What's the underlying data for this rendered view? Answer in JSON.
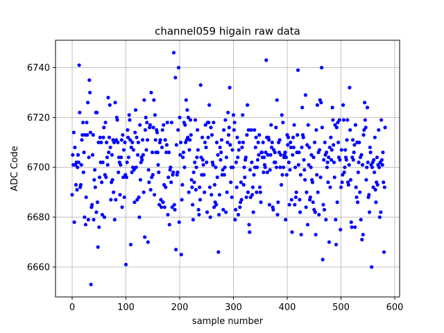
{
  "chart_data": {
    "type": "scatter",
    "title": "channel059 higain raw data",
    "xlabel": "sample number",
    "ylabel": "ADC Code",
    "xlim": [
      -31,
      609
    ],
    "ylim": [
      6648,
      6751
    ],
    "xticks": [
      0,
      100,
      200,
      300,
      400,
      500,
      600
    ],
    "yticks": [
      6660,
      6680,
      6700,
      6720,
      6740
    ],
    "grid": true,
    "marker_color": "#0000ff",
    "series": [
      {
        "values": [
          6689,
          6705,
          6701,
          6714,
          6678,
          6708,
          6701,
          6693,
          6702,
          6691,
          6700,
          6705,
          6702,
          6741,
          6722,
          6692,
          6693,
          6701,
          6711,
          6713,
          6718,
          6698,
          6706,
          6680,
          6713,
          6677,
          6688,
          6718,
          6713,
          6726,
          6679,
          6704,
          6735,
          6730,
          6714,
          6653,
          6684,
          6685,
          6705,
          6713,
          6679,
          6695,
          6699,
          6692,
          6722,
          6682,
          6722,
          6686,
          6668,
          6710,
          6676,
          6696,
          6712,
          6702,
          6710,
          6694,
          6681,
          6702,
          6712,
          6716,
          6680,
          6697,
          6718,
          6696,
          6710,
          6704,
          6701,
          6728,
          6706,
          6712,
          6725,
          6708,
          6687,
          6694,
          6705,
          6695,
          6711,
          6690,
          6710,
          6679,
          6726,
          6687,
          6711,
          6720,
          6719,
          6710,
          6698,
          6704,
          6702,
          6689,
          6701,
          6704,
          6711,
          6684,
          6713,
          6696,
          6707,
          6688,
          6710,
          6697,
          6661,
          6696,
          6702,
          6715,
          6712,
          6704,
          6721,
          6719,
          6711,
          6669,
          6708,
          6698,
          6710,
          6700,
          6707,
          6699,
          6686,
          6714,
          6723,
          6700,
          6712,
          6687,
          6705,
          6710,
          6688,
          6680,
          6717,
          6695,
          6702,
          6704,
          6703,
          6711,
          6705,
          6690,
          6727,
          6672,
          6715,
          6720,
          6707,
          6718,
          6711,
          6670,
          6699,
          6694,
          6716,
          6717,
          6691,
          6730,
          6696,
          6706,
          6697,
          6716,
          6727,
          6689,
          6721,
          6711,
          6706,
          6715,
          6714,
          6706,
          6701,
          6698,
          6685,
          6710,
          6711,
          6687,
          6684,
          6708,
          6715,
          6686,
          6717,
          6693,
          6684,
          6711,
          6692,
          6706,
          6709,
          6718,
          6681,
          6696,
          6706,
          6677,
          6699,
          6700,
          6694,
          6718,
          6684,
          6697,
          6698,
          6746,
          6685,
          6683,
          6736,
          6667,
          6709,
          6697,
          6698,
          6715,
          6740,
          6678,
          6720,
          6705,
          6710,
          6665,
          6687,
          6693,
          6704,
          6706,
          6718,
          6700,
          6717,
          6710,
          6727,
          6711,
          6723,
          6712,
          6720,
          6690,
          6707,
          6711,
          6719,
          6713,
          6695,
          6692,
          6685,
          6679,
          6698,
          6694,
          6702,
          6719,
          6691,
          6700,
          6704,
          6715,
          6707,
          6683,
          6681,
          6692,
          6687,
          6733,
          6704,
          6697,
          6712,
          6703,
          6701,
          6697,
          6690,
          6710,
          6717,
          6708,
          6702,
          6682,
          6718,
          6712,
          6718,
          6725,
          6692,
          6680,
          6716,
          6689,
          6713,
          6702,
          6701,
          6718,
          6684,
          6693,
          6686,
          6700,
          6685,
          6710,
          6696,
          6705,
          6666,
          6681,
          6689,
          6708,
          6703,
          6706,
          6711,
          6697,
          6699,
          6683,
          6715,
          6697,
          6700,
          6719,
          6682,
          6704,
          6690,
          6710,
          6722,
          6713,
          6716,
          6732,
          6709,
          6694,
          6700,
          6688,
          6707,
          6700,
          6721,
          6715,
          6718,
          6679,
          6683,
          6702,
          6692,
          6712,
          6704,
          6681,
          6707,
          6710,
          6684,
          6686,
          6694,
          6687,
          6708,
          6721,
          6710,
          6693,
          6700,
          6696,
          6703,
          6704,
          6688,
          6713,
          6725,
          6690,
          6715,
          6677,
          6674,
          6699,
          6688,
          6715,
          6702,
          6689,
          6692,
          6682,
          6697,
          6715,
          6700,
          6708,
          6712,
          6690,
          6700,
          6703,
          6710,
          6705,
          6713,
          6692,
          6690,
          6686,
          6706,
          6706,
          6704,
          6710,
          6698,
          6704,
          6701,
          6700,
          6706,
          6743,
          6712,
          6698,
          6705,
          6712,
          6711,
          6685,
          6699,
          6705,
          6717,
          6708,
          6710,
          6684,
          6683,
          6707,
          6702,
          6706,
          6702,
          6716,
          6700,
          6727,
          6681,
          6686,
          6710,
          6706,
          6711,
          6700,
          6705,
          6693,
          6721,
          6697,
          6718,
          6700,
          6704,
          6705,
          6706,
          6679,
          6704,
          6697,
          6713,
          6709,
          6712,
          6702,
          6685,
          6699,
          6710,
          6708,
          6687,
          6674,
          6705,
          6712,
          6708,
          6717,
          6685,
          6700,
          6688,
          6690,
          6706,
          6713,
          6739,
          6701,
          6706,
          6687,
          6682,
          6697,
          6673,
          6708,
          6724,
          6713,
          6712,
          6703,
          6699,
          6695,
          6729,
          6684,
          6690,
          6709,
          6677,
          6717,
          6701,
          6708,
          6687,
          6688,
          6700,
          6705,
          6695,
          6694,
          6686,
          6704,
          6683,
          6710,
          6682,
          6673,
          6715,
          6697,
          6725,
          6690,
          6706,
          6681,
          6707,
          6727,
          6696,
          6726,
          6740,
          6716,
          6663,
          6685,
          6703,
          6683,
          6710,
          6705,
          6679,
          6706,
          6700,
          6702,
          6694,
          6704,
          6670,
          6708,
          6692,
          6712,
          6703,
          6707,
          6724,
          6719,
          6709,
          6702,
          6696,
          6717,
          6679,
          6669,
          6716,
          6686,
          6718,
          6710,
          6704,
          6719,
          6703,
          6675,
          6692,
          6707,
          6694,
          6697,
          6725,
          6719,
          6698,
          6700,
          6707,
          6704,
          6703,
          6711,
          6719,
          6694,
          6693,
          6701,
          6732,
          6715,
          6695,
          6678,
          6676,
          6704,
          6711,
          6703,
          6706,
          6709,
          6676,
          6717,
          6692,
          6688,
          6710,
          6686,
          6698,
          6702,
          6710,
          6690,
          6704,
          6679,
          6705,
          6671,
          6701,
          6673,
          6713,
          6715,
          6726,
          6719,
          6716,
          6695,
          6700,
          6724,
          6702,
          6688,
          6689,
          6682,
          6708,
          6706,
          6701,
          6660,
          6700,
          6702,
          6692,
          6703,
          6698,
          6712,
          6691,
          6686,
          6694,
          6704,
          6693,
          6701,
          6715,
          6700,
          6680,
          6702,
          6682,
          6719,
          6703,
          6701,
          6706,
          6694,
          6666,
          6692,
          6716
        ]
      }
    ]
  }
}
